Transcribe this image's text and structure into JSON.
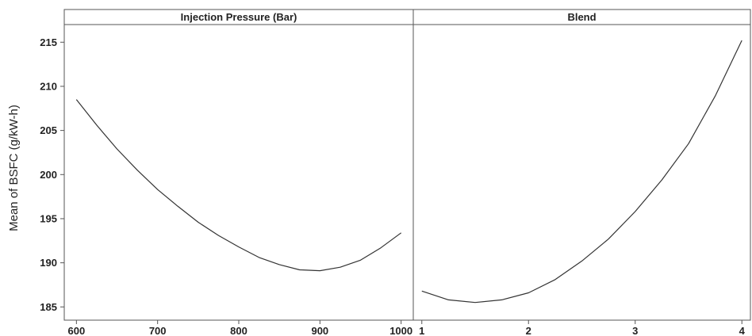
{
  "chart_data": {
    "type": "line",
    "ylabel": "Mean of BSFC (g/kW-h)",
    "ylim": [
      183.5,
      217
    ],
    "yticks": [
      185,
      190,
      195,
      200,
      205,
      210,
      215
    ],
    "colors": {
      "line": "#333333",
      "frame": "#555555",
      "header_bg": "#ffffff"
    },
    "panels": [
      {
        "title": "Injection Pressure (Bar)",
        "xlim": [
          585,
          1015
        ],
        "xticks": [
          600,
          700,
          800,
          900,
          1000
        ],
        "series": [
          {
            "x": [
              600,
              625,
              650,
              675,
              700,
              725,
              750,
              775,
              800,
              825,
              850,
              875,
              900,
              925,
              950,
              975,
              1000
            ],
            "values": [
              208.5,
              205.6,
              202.9,
              200.5,
              198.3,
              196.4,
              194.6,
              193.1,
              191.8,
              190.6,
              189.8,
              189.2,
              189.1,
              189.5,
              190.3,
              191.7,
              193.4
            ]
          }
        ]
      },
      {
        "title": "Blend",
        "xlim": [
          0.92,
          4.08
        ],
        "xticks": [
          1,
          2,
          3,
          4
        ],
        "series": [
          {
            "x": [
              1.0,
              1.25,
              1.5,
              1.75,
              2.0,
              2.25,
              2.5,
              2.75,
              3.0,
              3.25,
              3.5,
              3.75,
              4.0
            ],
            "values": [
              186.8,
              185.8,
              185.5,
              185.8,
              186.6,
              188.1,
              190.2,
              192.7,
              195.8,
              199.4,
              203.5,
              208.9,
              215.2
            ]
          }
        ]
      }
    ]
  }
}
